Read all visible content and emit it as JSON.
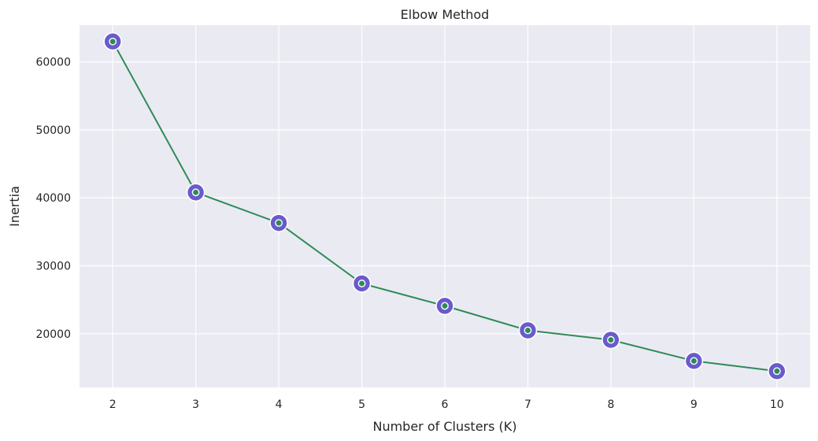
{
  "chart_data": {
    "type": "line",
    "title": "Elbow Method",
    "xlabel": "Number of Clusters (K)",
    "ylabel": "Inertia",
    "x": [
      2,
      3,
      4,
      5,
      6,
      7,
      8,
      9,
      10
    ],
    "series": [
      {
        "values": [
          63000,
          40800,
          36300,
          27400,
          24100,
          20500,
          19100,
          16000,
          14500
        ]
      }
    ],
    "xlim": [
      1.6,
      10.4
    ],
    "ylim": [
      12100,
      65400
    ],
    "xticks": [
      2,
      3,
      4,
      5,
      6,
      7,
      8,
      9,
      10
    ],
    "yticks": [
      20000,
      30000,
      40000,
      50000,
      60000
    ],
    "grid": true,
    "legend": "none",
    "colors": {
      "background": "#eaeaf2",
      "grid": "#ffffff",
      "line": "#2e8b57",
      "marker_outer": "#6a5acd",
      "marker_inner": "#2e8b57",
      "marker_edge": "#ffffff"
    }
  }
}
